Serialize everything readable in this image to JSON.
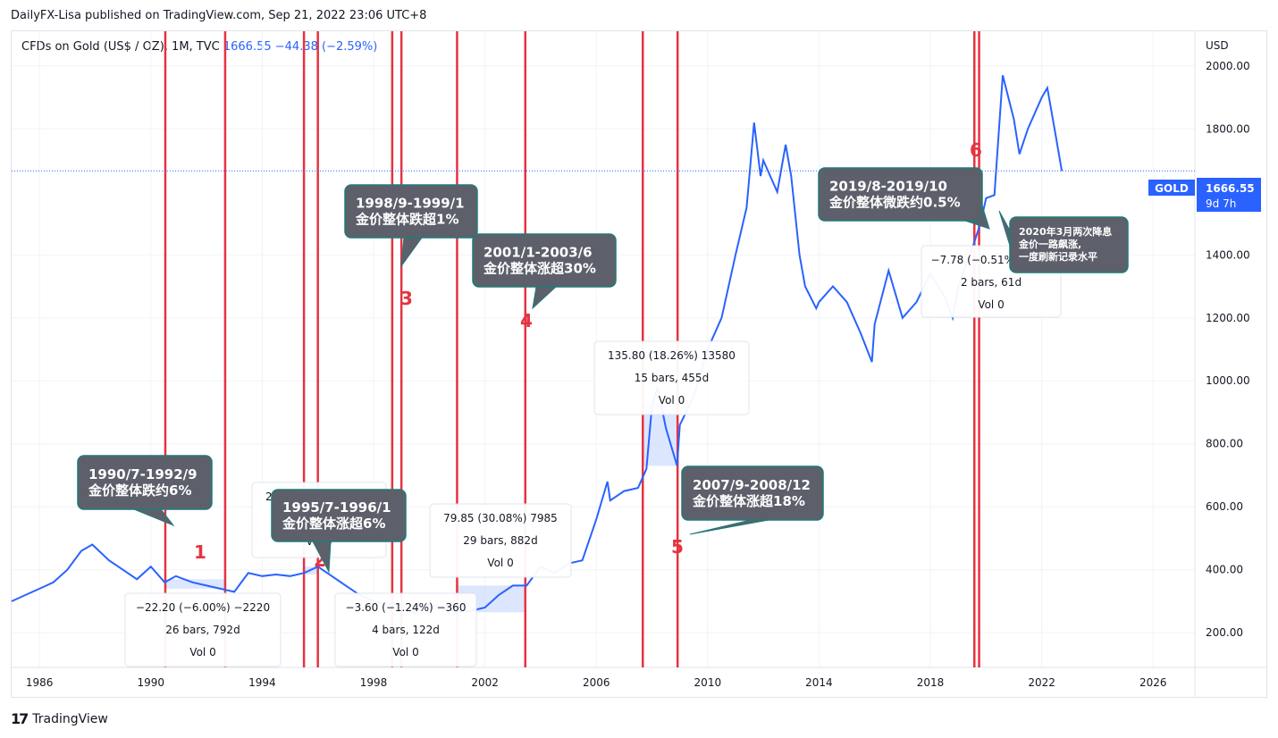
{
  "header": {
    "published": "DailyFX-Lisa published on TradingView.com, Sep 21, 2022 23:06 UTC+8",
    "symbol": "CFDs on Gold (US$ / OZ), 1M, TVC",
    "last": "1666.55",
    "change": "−44.38 (−2.59%)"
  },
  "footer": {
    "brand": "TradingView"
  },
  "colors": {
    "line": "#2962ff",
    "vline": "#e53340",
    "callout_bg": "#5d606b",
    "callout_border": "#1f7a7a",
    "measure_fill": "#cfdcff"
  },
  "chart_data": {
    "type": "line",
    "title": "CFDs on Gold (US$ / OZ), 1M, TVC",
    "ylabel": "USD",
    "xlim": [
      1985,
      2027.5
    ],
    "ylim": [
      90,
      2110
    ],
    "price_axis_ticks": [
      "2000.00",
      "1800.00",
      "1400.00",
      "1200.00",
      "1000.00",
      "800.00",
      "600.00",
      "400.00",
      "200.00"
    ],
    "time_axis_ticks": [
      "1986",
      "1990",
      "1994",
      "1998",
      "2002",
      "2006",
      "2010",
      "2014",
      "2018",
      "2022",
      "2026"
    ],
    "price_label": {
      "symbol": "GOLD",
      "value": "1666.55",
      "countdown": "9d 7h"
    },
    "series": [
      {
        "name": "Gold",
        "x": [
          1985.0,
          1985.5,
          1986.0,
          1986.5,
          1987.0,
          1987.5,
          1987.9,
          1988.5,
          1989.0,
          1989.5,
          1990.0,
          1990.5,
          1990.9,
          1991.5,
          1992.0,
          1992.5,
          1993.0,
          1993.5,
          1994.0,
          1994.5,
          1995.0,
          1995.5,
          1996.0,
          1996.5,
          1997.0,
          1997.5,
          1998.0,
          1998.5,
          1999.0,
          1999.5,
          1999.8,
          2000.0,
          2000.5,
          2001.0,
          2001.5,
          2002.0,
          2002.5,
          2003.0,
          2003.5,
          2004.0,
          2004.5,
          2005.0,
          2005.5,
          2006.0,
          2006.4,
          2006.5,
          2007.0,
          2007.5,
          2007.8,
          2008.0,
          2008.2,
          2008.5,
          2008.9,
          2009.0,
          2009.5,
          2010.0,
          2010.5,
          2011.0,
          2011.4,
          2011.67,
          2011.9,
          2012.0,
          2012.5,
          2012.8,
          2013.0,
          2013.3,
          2013.5,
          2013.9,
          2014.0,
          2014.5,
          2015.0,
          2015.5,
          2015.9,
          2016.0,
          2016.5,
          2017.0,
          2017.5,
          2018.0,
          2018.5,
          2018.8,
          2019.0,
          2019.5,
          2019.8,
          2020.0,
          2020.3,
          2020.6,
          2021.0,
          2021.2,
          2021.5,
          2022.0,
          2022.2,
          2022.5,
          2022.72
        ],
        "values": [
          300,
          320,
          340,
          360,
          400,
          460,
          480,
          430,
          400,
          370,
          410,
          360,
          380,
          360,
          350,
          340,
          330,
          390,
          380,
          385,
          380,
          390,
          410,
          380,
          350,
          320,
          300,
          290,
          290,
          260,
          290,
          290,
          280,
          265,
          270,
          280,
          320,
          350,
          350,
          410,
          390,
          420,
          430,
          560,
          680,
          620,
          650,
          660,
          720,
          920,
          980,
          850,
          730,
          860,
          950,
          1100,
          1200,
          1400,
          1550,
          1820,
          1650,
          1700,
          1600,
          1750,
          1650,
          1400,
          1300,
          1230,
          1250,
          1300,
          1250,
          1150,
          1060,
          1180,
          1350,
          1200,
          1250,
          1340,
          1270,
          1200,
          1300,
          1420,
          1500,
          1580,
          1590,
          1970,
          1830,
          1720,
          1800,
          1900,
          1930,
          1780,
          1666.55
        ]
      }
    ],
    "vertical_markers": [
      1990.52,
      1992.67,
      1995.5,
      1996.0,
      1998.67,
      1999.0,
      2001.0,
      2003.45,
      2007.67,
      2008.92,
      2019.58,
      2019.75
    ],
    "period_numbers": [
      "1",
      "2",
      "3",
      "4",
      "5",
      "6"
    ],
    "callouts": [
      {
        "line1": "1990/7-1992/9",
        "line2": "金价整体跌约6%"
      },
      {
        "line1": "1995/7-1996/1",
        "line2": "金价整体涨超6%"
      },
      {
        "line1": "1998/9-1999/1",
        "line2": "金价整体跌超1%"
      },
      {
        "line1": "2001/1-2003/6",
        "line2": "金价整体涨超30%"
      },
      {
        "line1": "2007/9-2008/12",
        "line2": "金价整体涨超18%"
      },
      {
        "line1": "2019/8-2019/10",
        "line2": "金价整体微跌约0.5%"
      },
      {
        "line1": "2020年3月两次降息",
        "line2": "金价一路飙涨,",
        "line3": "一度刷新记录水平"
      }
    ],
    "measures": [
      {
        "l1": "−22.20 (−6.00%) −2220",
        "l2": "26 bars, 792d",
        "l3": "Vol 0"
      },
      {
        "l1": "23.30 (6.09%) 2330",
        "l2": "",
        "l3": "Vol 0"
      },
      {
        "l1": "−3.60 (−1.24%) −360",
        "l2": "4 bars, 122d",
        "l3": "Vol 0"
      },
      {
        "l1": "79.85 (30.08%) 7985",
        "l2": "29 bars, 882d",
        "l3": "Vol 0"
      },
      {
        "l1": "135.80 (18.26%) 13580",
        "l2": "15 bars, 455d",
        "l3": "Vol 0"
      },
      {
        "l1": "−7.78 (−0.51%) −778",
        "l2": "2 bars, 61d",
        "l3": "Vol 0"
      }
    ]
  }
}
